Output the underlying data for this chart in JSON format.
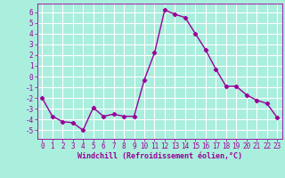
{
  "x": [
    0,
    1,
    2,
    3,
    4,
    5,
    6,
    7,
    8,
    9,
    10,
    11,
    12,
    13,
    14,
    15,
    16,
    17,
    18,
    19,
    20,
    21,
    22,
    23
  ],
  "y": [
    -2,
    -3.7,
    -4.2,
    -4.3,
    -5.0,
    -2.9,
    -3.7,
    -3.5,
    -3.7,
    -3.7,
    -0.3,
    2.2,
    6.2,
    5.8,
    5.5,
    4.0,
    2.5,
    0.7,
    -0.9,
    -0.9,
    -1.7,
    -2.2,
    -2.5,
    -3.8
  ],
  "line_color": "#990099",
  "marker": "D",
  "markersize": 2.2,
  "linewidth": 1.0,
  "background_color": "#aaeedd",
  "grid_color": "#ffffff",
  "xlabel": "Windchill (Refroidissement éolien,°C)",
  "xlabel_color": "#990099",
  "tick_color": "#990099",
  "ylim": [
    -5.8,
    6.8
  ],
  "xlim": [
    -0.5,
    23.5
  ],
  "yticks": [
    -5,
    -4,
    -3,
    -2,
    -1,
    0,
    1,
    2,
    3,
    4,
    5,
    6
  ],
  "xticks": [
    0,
    1,
    2,
    3,
    4,
    5,
    6,
    7,
    8,
    9,
    10,
    11,
    12,
    13,
    14,
    15,
    16,
    17,
    18,
    19,
    20,
    21,
    22,
    23
  ],
  "tick_fontsize": 5.5,
  "xlabel_fontsize": 6.0
}
